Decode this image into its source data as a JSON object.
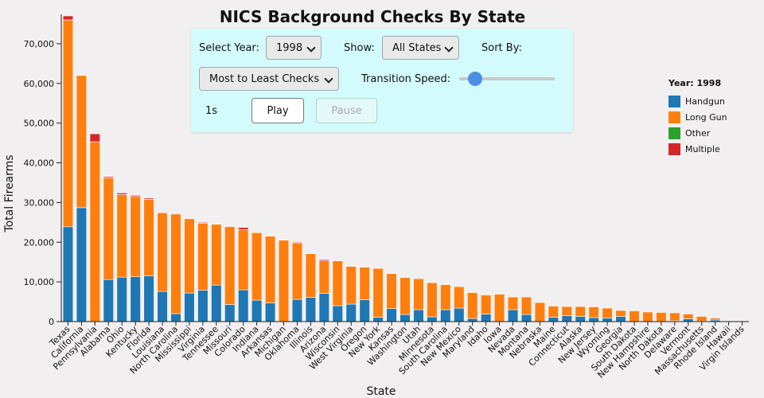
{
  "title": "NICS Background Checks By State",
  "controls": {
    "year_label": "Select Year:",
    "year_value": "1998",
    "show_label": "Show:",
    "show_value": "All States",
    "sort_label": "Sort By:",
    "sort_value": "Most to Least Checks",
    "speed_label": "Transition Speed:",
    "speed_value": "1s",
    "speed_fraction": 0.1,
    "play_label": "Play",
    "pause_label": "Pause"
  },
  "legend": {
    "title": "Year: 1998",
    "items": [
      {
        "label": "Handgun",
        "color": "#1f77b4"
      },
      {
        "label": "Long Gun",
        "color": "#ff7f0e"
      },
      {
        "label": "Other",
        "color": "#2ca02c"
      },
      {
        "label": "Multiple",
        "color": "#d62728"
      }
    ]
  },
  "chart_data": {
    "type": "bar",
    "stacked": true,
    "xlabel": "State",
    "ylabel": "Total Firearms",
    "ylim": [
      0,
      77000
    ],
    "yticks": [
      0,
      10000,
      20000,
      30000,
      40000,
      50000,
      60000,
      70000
    ],
    "ytick_labels": [
      "0",
      "10,000",
      "20,000",
      "30,000",
      "40,000",
      "50,000",
      "60,000",
      "70,000"
    ],
    "categories": [
      "Texas",
      "California",
      "Pennsylvania",
      "Alabama",
      "Ohio",
      "Kentucky",
      "Florida",
      "Louisiana",
      "North Carolina",
      "Mississippi",
      "Virginia",
      "Tennessee",
      "Missouri",
      "Colorado",
      "Indiana",
      "Arkansas",
      "Michigan",
      "Oklahoma",
      "Illinois",
      "Arizona",
      "Wisconsin",
      "West Virginia",
      "Oregon",
      "New York",
      "Kansas",
      "Washington",
      "Utah",
      "Minnesota",
      "South Carolina",
      "New Mexico",
      "Maryland",
      "Idaho",
      "Iowa",
      "Nevada",
      "Montana",
      "Nebraska",
      "Maine",
      "Connecticut",
      "Alaska",
      "New Jersey",
      "Wyoming",
      "Georgia",
      "South Dakota",
      "New Hampshire",
      "North Dakota",
      "Delaware",
      "Vermont",
      "Massachusetts",
      "Rhode Island",
      "Hawaii",
      "Virgin Islands"
    ],
    "series": [
      {
        "name": "Handgun",
        "color": "#1f77b4",
        "values": [
          23900,
          28700,
          0,
          10600,
          11200,
          11300,
          11500,
          7600,
          2000,
          7200,
          7900,
          9200,
          4300,
          8000,
          5400,
          4700,
          0,
          5600,
          6100,
          7100,
          4000,
          4400,
          5500,
          1100,
          3300,
          1800,
          3000,
          1200,
          3000,
          3400,
          800,
          1900,
          0,
          3000,
          1800,
          0,
          1100,
          1500,
          1300,
          1000,
          900,
          1300,
          0,
          0,
          0,
          200,
          700,
          100,
          400,
          0,
          0
        ]
      },
      {
        "name": "Long Gun",
        "color": "#ff7f0e",
        "values": [
          52100,
          33300,
          45300,
          25600,
          20800,
          20200,
          19300,
          19800,
          25100,
          18700,
          16900,
          15300,
          19600,
          15200,
          17000,
          16800,
          20500,
          14200,
          11000,
          8200,
          11300,
          9500,
          8200,
          12300,
          8800,
          9300,
          7800,
          8600,
          6300,
          5400,
          6500,
          4800,
          6900,
          3200,
          4400,
          4800,
          2800,
          2300,
          2500,
          2700,
          2500,
          1500,
          2700,
          2400,
          2300,
          2000,
          1200,
          1200,
          500,
          0,
          0
        ]
      },
      {
        "name": "Other",
        "color": "#2ca02c",
        "values": [
          0,
          0,
          0,
          0,
          0,
          0,
          0,
          0,
          0,
          0,
          0,
          0,
          0,
          0,
          0,
          0,
          0,
          0,
          0,
          0,
          0,
          0,
          0,
          0,
          0,
          0,
          0,
          0,
          0,
          0,
          0,
          0,
          0,
          0,
          0,
          0,
          0,
          0,
          0,
          0,
          0,
          0,
          0,
          0,
          0,
          0,
          0,
          0,
          0,
          0,
          0
        ]
      },
      {
        "name": "Multiple",
        "color": "#d62728",
        "values": [
          1000,
          0,
          2000,
          300,
          400,
          300,
          300,
          0,
          0,
          0,
          200,
          0,
          0,
          500,
          0,
          0,
          0,
          200,
          0,
          300,
          0,
          0,
          0,
          0,
          0,
          0,
          0,
          0,
          0,
          0,
          0,
          0,
          0,
          0,
          0,
          0,
          0,
          0,
          0,
          0,
          0,
          0,
          0,
          0,
          0,
          0,
          0,
          0,
          0,
          0,
          0
        ]
      }
    ]
  }
}
